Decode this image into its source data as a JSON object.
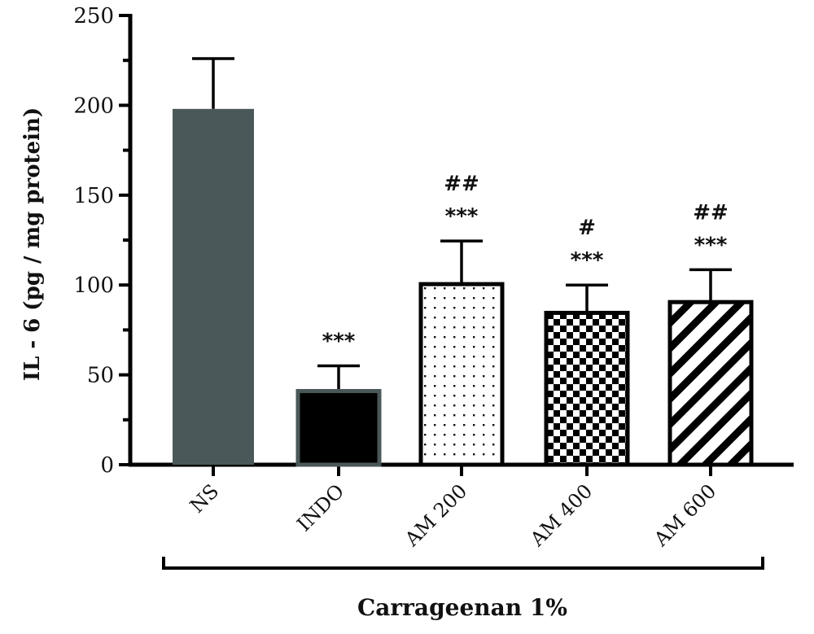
{
  "chart_data": {
    "type": "bar",
    "title": "",
    "ylabel": "IL - 6 (pg / mg protein)",
    "xlabel": "Carrageenan 1%",
    "ylim": [
      0,
      250
    ],
    "yticks": [
      0,
      50,
      100,
      150,
      200,
      250
    ],
    "grid": false,
    "categories": [
      "NS",
      "INDO",
      "AM 200",
      "AM 400",
      "AM 600"
    ],
    "values": [
      198,
      41,
      100.5,
      84.5,
      90.5
    ],
    "error_upper": [
      226,
      55,
      124.5,
      100,
      108.5
    ],
    "annotations": [
      {
        "category": "NS",
        "lines": []
      },
      {
        "category": "INDO",
        "lines": [
          "***"
        ]
      },
      {
        "category": "AM 200",
        "lines": [
          "##",
          "***"
        ]
      },
      {
        "category": "AM 400",
        "lines": [
          "#",
          "***"
        ]
      },
      {
        "category": "AM 600",
        "lines": [
          "##",
          "***"
        ]
      }
    ],
    "fills": [
      "solid-gray",
      "solid-black",
      "dots",
      "checkerboard",
      "diagonal-stripes"
    ],
    "colors": {
      "ns": "#4a5859",
      "indo": "#000000",
      "outline": "#000000"
    }
  }
}
